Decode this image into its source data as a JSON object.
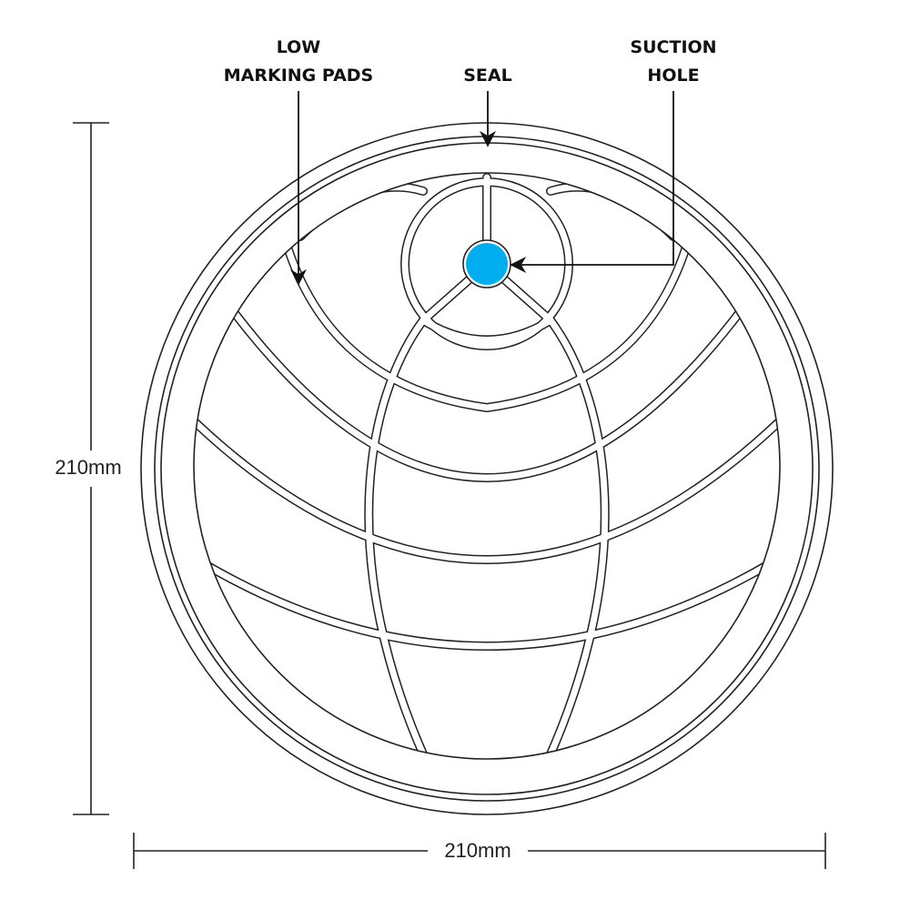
{
  "labels": {
    "pads_line1": "LOW",
    "pads_line2": "MARKING PADS",
    "seal": "SEAL",
    "suction_line1": "SUCTION",
    "suction_line2": "HOLE"
  },
  "dimensions": {
    "height": "210mm",
    "width": "210mm"
  },
  "colors": {
    "suction_hole": "#00aeef",
    "outline": "#222222"
  }
}
